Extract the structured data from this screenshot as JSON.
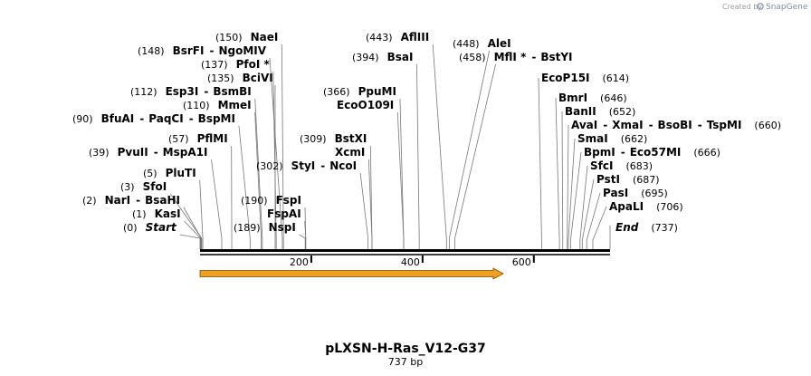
{
  "brand": {
    "created_by": "Created by",
    "name": "SnapGene"
  },
  "title": "pLXSN-H-Ras_V12-G37",
  "subtitle": "737 bp",
  "ruler": {
    "start": 0,
    "end": 737,
    "ticks": [
      200,
      400,
      600
    ]
  },
  "feature": {
    "start": 0,
    "end": 540,
    "color": "#f0a020",
    "direction": "forward"
  },
  "sites": [
    {
      "name": "Start",
      "pos": 0,
      "label": "(0)",
      "italic": true
    },
    {
      "name": "KasI",
      "pos": 1,
      "label": "(1)"
    },
    {
      "name": "NarI",
      "pos": 2,
      "label": "(2)",
      "extra": [
        "BsaHI"
      ]
    },
    {
      "name": "SfoI",
      "pos": 3,
      "label": "(3)"
    },
    {
      "name": "PluTI",
      "pos": 5,
      "label": "(5)"
    },
    {
      "name": "PvuII",
      "pos": 39,
      "label": "(39)",
      "extra": [
        "MspA1I"
      ]
    },
    {
      "name": "PflMI",
      "pos": 57,
      "label": "(57)"
    },
    {
      "name": "BfuAI",
      "pos": 90,
      "label": "(90)",
      "extra": [
        "PaqCI",
        "BspMI"
      ]
    },
    {
      "name": "MmeI",
      "pos": 110,
      "label": "(110)"
    },
    {
      "name": "Esp3I",
      "pos": 112,
      "label": "(112)",
      "extra": [
        "BsmBI"
      ]
    },
    {
      "name": "BciVI",
      "pos": 135,
      "label": "(135)"
    },
    {
      "name": "PfoI *",
      "pos": 137,
      "label": "(137)"
    },
    {
      "name": "BsrFI",
      "pos": 148,
      "label": "(148)",
      "extra": [
        "NgoMIV"
      ]
    },
    {
      "name": "NaeI",
      "pos": 150,
      "label": "(150)"
    },
    {
      "name": "NspI",
      "pos": 189,
      "label": "(189)"
    },
    {
      "name": "FspAI",
      "pos": 190,
      "label": ""
    },
    {
      "name": "FspI",
      "pos": 190,
      "label": "(190)"
    },
    {
      "name": "StyI",
      "pos": 302,
      "label": "(302)",
      "extra": [
        "NcoI"
      ]
    },
    {
      "name": "XcmI",
      "pos": 309,
      "label": ""
    },
    {
      "name": "BstXI",
      "pos": 309,
      "label": "(309)"
    },
    {
      "name": "EcoO109I",
      "pos": 366,
      "label": ""
    },
    {
      "name": "PpuMI",
      "pos": 366,
      "label": "(366)"
    },
    {
      "name": "BsaI",
      "pos": 394,
      "label": "(394)"
    },
    {
      "name": "AflIII",
      "pos": 443,
      "label": "(443)"
    },
    {
      "name": "AleI",
      "pos": 448,
      "label": "(448)"
    },
    {
      "name": "MflI *",
      "pos": 458,
      "label": "(458)",
      "extra": [
        "BstYI"
      ]
    },
    {
      "name": "EcoP15I",
      "pos": 614,
      "label": "(614)"
    },
    {
      "name": "BmrI",
      "pos": 646,
      "label": "(646)"
    },
    {
      "name": "BanII",
      "pos": 652,
      "label": "(652)"
    },
    {
      "name": "AvaI",
      "pos": 660,
      "label": "(660)",
      "extra": [
        "XmaI",
        "BsoBI",
        "TspMI"
      ]
    },
    {
      "name": "SmaI",
      "pos": 662,
      "label": "(662)"
    },
    {
      "name": "BpmI",
      "pos": 666,
      "label": "(666)",
      "extra": [
        "Eco57MI"
      ]
    },
    {
      "name": "SfcI",
      "pos": 683,
      "label": "(683)"
    },
    {
      "name": "PstI",
      "pos": 687,
      "label": "(687)"
    },
    {
      "name": "PasI",
      "pos": 695,
      "label": "(695)"
    },
    {
      "name": "ApaLI",
      "pos": 706,
      "label": "(706)"
    },
    {
      "name": "End",
      "pos": 737,
      "label": "(737)",
      "italic": true
    }
  ]
}
